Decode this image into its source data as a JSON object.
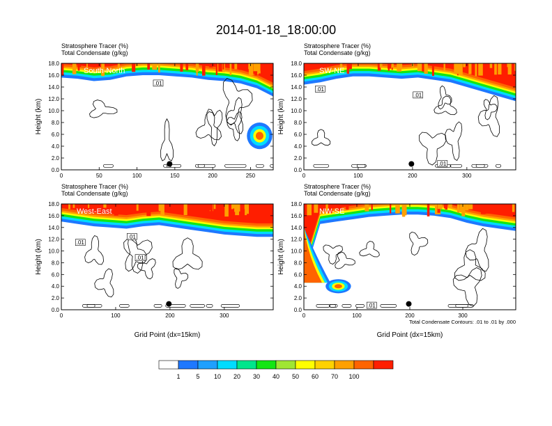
{
  "title": "2014-01-18_18:00:00",
  "panel_subtitles": [
    "Stratosphere Tracer   (%)",
    "Total Condensate   (g/kg)"
  ],
  "contour_label": ".01",
  "footnote": "Total Condensate Contours: .01 to .01 by .000",
  "colorbar": {
    "colors": [
      "#ffffff",
      "#1e78ff",
      "#1ea0ff",
      "#00dcff",
      "#00e68c",
      "#14e614",
      "#a0e632",
      "#ffff00",
      "#ffd200",
      "#ffa000",
      "#ff6400",
      "#ff1e00"
    ],
    "labels": [
      "1",
      "5",
      "10",
      "20",
      "30",
      "40",
      "50",
      "60",
      "70",
      "100"
    ]
  },
  "chart_data": [
    {
      "type": "heatmap",
      "name": "South-North",
      "title": "Stratosphere Tracer (%)",
      "subtitle": "Total Condensate (g/kg)",
      "xlabel": "",
      "ylabel": "Height (km)",
      "xlim": [
        0,
        280
      ],
      "ylim": [
        0,
        18
      ],
      "xticks": [
        0,
        50,
        100,
        150,
        200,
        250
      ],
      "yticks": [
        0.0,
        2.0,
        4.0,
        6.0,
        8.0,
        10.0,
        12.0,
        14.0,
        16.0,
        18.0
      ],
      "marker_x": 143,
      "marker_y": 1.0,
      "tracer_top_km": [
        15.6,
        15.4,
        15.0,
        15.2,
        15.8,
        16.0,
        16.0,
        15.8,
        15.6,
        15.2,
        15.0,
        14.6,
        13.8,
        12.4
      ],
      "intrusion": {
        "x": 262,
        "ymin": 3.5,
        "ymax": 8.0
      }
    },
    {
      "type": "heatmap",
      "name": "SW-NE",
      "title": "Stratosphere Tracer (%)",
      "subtitle": "Total Condensate (g/kg)",
      "xlabel": "",
      "ylabel": "Height (km)",
      "xlim": [
        0,
        390
      ],
      "ylim": [
        0,
        18
      ],
      "xticks": [
        0,
        100,
        200,
        300
      ],
      "yticks": [
        0.0,
        2.0,
        4.0,
        6.0,
        8.0,
        10.0,
        12.0,
        14.0,
        16.0,
        18.0
      ],
      "marker_x": 198,
      "marker_y": 1.0,
      "tracer_top_km": [
        14.4,
        14.8,
        15.4,
        15.8,
        15.8,
        15.6,
        15.4,
        15.6,
        15.2,
        14.8,
        14.0,
        13.2,
        12.4,
        11.6
      ],
      "intrusion": null
    },
    {
      "type": "heatmap",
      "name": "West-East",
      "title": "Stratosphere Tracer (%)",
      "subtitle": "Total Condensate (g/kg)",
      "xlabel": "Grid Point (dx=15km)",
      "ylabel": "Height (km)",
      "xlim": [
        0,
        390
      ],
      "ylim": [
        0,
        18
      ],
      "xticks": [
        0,
        100,
        200,
        300
      ],
      "yticks": [
        0.0,
        2.0,
        4.0,
        6.0,
        8.0,
        10.0,
        12.0,
        14.0,
        16.0,
        18.0
      ],
      "marker_x": 198,
      "marker_y": 1.0,
      "tracer_top_km": [
        15.0,
        14.6,
        14.2,
        14.0,
        13.8,
        14.2,
        14.4,
        14.0,
        13.6,
        13.2,
        12.8,
        12.6,
        12.4,
        12.4
      ],
      "intrusion": null
    },
    {
      "type": "heatmap",
      "name": "NW-SE",
      "title": "Stratosphere Tracer (%)",
      "subtitle": "Total Condensate (g/kg)",
      "xlabel": "Grid Point (dx=15km)",
      "ylabel": "Height (km)",
      "xlim": [
        0,
        400
      ],
      "ylim": [
        0,
        18
      ],
      "xticks": [
        0,
        100,
        200,
        300
      ],
      "yticks": [
        0.0,
        2.0,
        4.0,
        6.0,
        8.0,
        10.0,
        12.0,
        14.0,
        16.0,
        18.0
      ],
      "marker_x": 198,
      "marker_y": 1.0,
      "tracer_top_km": [
        5.5,
        14.6,
        15.0,
        15.4,
        15.8,
        16.0,
        16.2,
        16.2,
        16.0,
        15.6,
        14.8,
        14.2,
        13.8,
        13.4
      ],
      "intrusion": {
        "x": 65,
        "ymin": 2.8,
        "ymax": 5.2
      }
    }
  ]
}
